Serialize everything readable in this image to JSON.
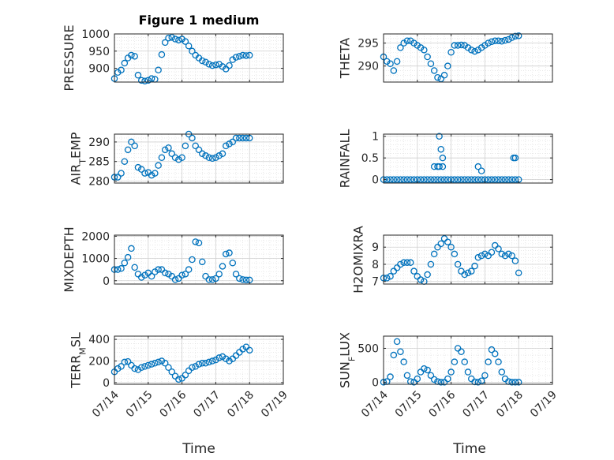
{
  "figure": {
    "title": "Figure 1 medium",
    "x_axis_label": "Time",
    "x_tick_labels": [
      "07/14",
      "07/15",
      "07/16",
      "07/17",
      "07/18",
      "07/19"
    ],
    "marker_color": "#0072bd"
  },
  "chart_data": [
    {
      "type": "scatter",
      "title": "Figure 1 medium",
      "ylabel_parts": [
        {
          "t": "PRESSURE"
        }
      ],
      "ylim": [
        860,
        1000
      ],
      "yticks": [
        900,
        950,
        1000
      ],
      "xlim": [
        0,
        5
      ],
      "series": [
        {
          "x": [
            0,
            0.1,
            0.2,
            0.3,
            0.4,
            0.5,
            0.6,
            0.7,
            0.8,
            0.9,
            1.0,
            1.1,
            1.2,
            1.3,
            1.4,
            1.5,
            1.6,
            1.7,
            1.8,
            1.9,
            2.0,
            2.1,
            2.2,
            2.3,
            2.4,
            2.5,
            2.6,
            2.7,
            2.8,
            2.9,
            3.0,
            3.1,
            3.2,
            3.3,
            3.4,
            3.5,
            3.6,
            3.7,
            3.8,
            3.9,
            4.0
          ],
          "y": [
            870,
            888,
            895,
            915,
            930,
            938,
            935,
            880,
            865,
            863,
            865,
            870,
            868,
            895,
            940,
            975,
            988,
            990,
            985,
            982,
            985,
            978,
            965,
            950,
            938,
            930,
            922,
            918,
            912,
            908,
            910,
            912,
            905,
            898,
            908,
            925,
            932,
            935,
            938,
            937,
            938
          ]
        }
      ]
    },
    {
      "type": "scatter",
      "ylabel_parts": [
        {
          "t": "THETA"
        }
      ],
      "ylim": [
        286.5,
        297
      ],
      "yticks": [
        290,
        295
      ],
      "xlim": [
        0,
        5
      ],
      "series": [
        {
          "x": [
            0,
            0.1,
            0.2,
            0.3,
            0.4,
            0.5,
            0.6,
            0.7,
            0.8,
            0.9,
            1.0,
            1.1,
            1.2,
            1.3,
            1.4,
            1.5,
            1.6,
            1.7,
            1.8,
            1.9,
            2.0,
            2.1,
            2.2,
            2.3,
            2.4,
            2.5,
            2.6,
            2.7,
            2.8,
            2.9,
            3.0,
            3.1,
            3.2,
            3.3,
            3.4,
            3.5,
            3.6,
            3.7,
            3.8,
            3.9,
            4.0
          ],
          "y": [
            292,
            291,
            290.5,
            289,
            291,
            294,
            295,
            295.5,
            295.5,
            295,
            294.5,
            294,
            293.5,
            292,
            290.5,
            289,
            287.5,
            287.2,
            288,
            290,
            293,
            294.5,
            294.5,
            294.6,
            294.5,
            294,
            293.5,
            293.2,
            293.5,
            294,
            294.5,
            295,
            295.3,
            295.5,
            295.5,
            295.4,
            295.6,
            295.8,
            296.2,
            296.5,
            296.6
          ]
        }
      ]
    },
    {
      "type": "scatter",
      "ylabel_parts": [
        {
          "t": "AIR"
        },
        {
          "t": "T",
          "sub": true
        },
        {
          "t": "EMP"
        }
      ],
      "ylim": [
        279.5,
        292
      ],
      "yticks": [
        280,
        285,
        290
      ],
      "xlim": [
        0,
        5
      ],
      "series": [
        {
          "x": [
            0,
            0.1,
            0.2,
            0.3,
            0.4,
            0.5,
            0.6,
            0.7,
            0.8,
            0.9,
            1.0,
            1.1,
            1.2,
            1.3,
            1.4,
            1.5,
            1.6,
            1.7,
            1.8,
            1.9,
            2.0,
            2.1,
            2.2,
            2.3,
            2.4,
            2.5,
            2.6,
            2.7,
            2.8,
            2.9,
            3.0,
            3.1,
            3.2,
            3.3,
            3.4,
            3.5,
            3.6,
            3.7,
            3.8,
            3.9,
            4.0
          ],
          "y": [
            281,
            281,
            282,
            285,
            288,
            290,
            289,
            283.5,
            283,
            282,
            282.2,
            281.5,
            282,
            284,
            286,
            288,
            288.5,
            287,
            286,
            285.5,
            286,
            289,
            292,
            291,
            289,
            288,
            287,
            286.5,
            286,
            285.8,
            286,
            286.5,
            287,
            289,
            289.5,
            290,
            291,
            291,
            291,
            291,
            291
          ]
        }
      ]
    },
    {
      "type": "scatter",
      "ylabel_parts": [
        {
          "t": "RAINFALL"
        }
      ],
      "ylim": [
        -0.08,
        1.05
      ],
      "yticks": [
        0,
        0.5,
        1
      ],
      "xlim": [
        0,
        5
      ],
      "series": [
        {
          "x": [
            0,
            0.1,
            0.2,
            0.3,
            0.4,
            0.5,
            0.6,
            0.7,
            0.8,
            0.9,
            1.0,
            1.1,
            1.2,
            1.3,
            1.4,
            1.5,
            1.6,
            1.7,
            1.8,
            1.9,
            2.0,
            2.1,
            2.2,
            2.3,
            2.4,
            2.5,
            2.6,
            2.7,
            2.8,
            2.9,
            3.0,
            3.1,
            3.2,
            3.3,
            3.4,
            3.5,
            3.6,
            3.7,
            3.8,
            3.9,
            4.0,
            1.5,
            1.65,
            1.7,
            1.65,
            1.75,
            1.75,
            1.6,
            2.8,
            2.9,
            3.85,
            3.9
          ],
          "y": [
            0,
            0,
            0,
            0,
            0,
            0,
            0,
            0,
            0,
            0,
            0,
            0,
            0,
            0,
            0,
            0,
            0,
            0,
            0,
            0,
            0,
            0,
            0,
            0,
            0,
            0,
            0,
            0,
            0,
            0,
            0,
            0,
            0,
            0,
            0,
            0,
            0,
            0,
            0,
            0,
            0,
            0.3,
            1.0,
            0.7,
            0.3,
            0.3,
            0.5,
            0.3,
            0.3,
            0.2,
            0.5,
            0.5
          ]
        }
      ]
    },
    {
      "type": "scatter",
      "ylabel_parts": [
        {
          "t": "MIXDEPTH"
        }
      ],
      "ylim": [
        -150,
        2050
      ],
      "yticks": [
        0,
        1000,
        2000
      ],
      "xlim": [
        0,
        5
      ],
      "series": [
        {
          "x": [
            0,
            0.1,
            0.2,
            0.3,
            0.4,
            0.5,
            0.6,
            0.7,
            0.8,
            0.9,
            1.0,
            1.1,
            1.2,
            1.3,
            1.4,
            1.5,
            1.6,
            1.7,
            1.8,
            1.9,
            2.0,
            2.1,
            2.2,
            2.3,
            2.4,
            2.5,
            2.6,
            2.7,
            2.8,
            2.9,
            3.0,
            3.1,
            3.2,
            3.3,
            3.4,
            3.5,
            3.6,
            3.7,
            3.8,
            3.9,
            4.0
          ],
          "y": [
            500,
            500,
            550,
            800,
            1050,
            1450,
            600,
            300,
            150,
            250,
            350,
            200,
            400,
            500,
            500,
            350,
            300,
            200,
            50,
            100,
            250,
            300,
            500,
            950,
            1750,
            1700,
            850,
            200,
            50,
            50,
            100,
            300,
            650,
            1200,
            1250,
            800,
            300,
            100,
            50,
            30,
            30
          ]
        }
      ]
    },
    {
      "type": "scatter",
      "ylabel_parts": [
        {
          "t": "H2OMIXRA"
        }
      ],
      "ylim": [
        6.85,
        9.7
      ],
      "yticks": [
        7,
        8,
        9
      ],
      "xlim": [
        0,
        5
      ],
      "series": [
        {
          "x": [
            0,
            0.1,
            0.2,
            0.3,
            0.4,
            0.5,
            0.6,
            0.7,
            0.8,
            0.9,
            1.0,
            1.1,
            1.2,
            1.3,
            1.4,
            1.5,
            1.6,
            1.7,
            1.8,
            1.9,
            2.0,
            2.1,
            2.2,
            2.3,
            2.4,
            2.5,
            2.6,
            2.7,
            2.8,
            2.9,
            3.0,
            3.1,
            3.2,
            3.3,
            3.4,
            3.5,
            3.6,
            3.7,
            3.8,
            3.9,
            4.0
          ],
          "y": [
            7.2,
            7.2,
            7.3,
            7.6,
            7.8,
            8.0,
            8.1,
            8.1,
            8.1,
            7.6,
            7.3,
            7.1,
            7.0,
            7.4,
            8.0,
            8.6,
            9.0,
            9.2,
            9.5,
            9.3,
            9.0,
            8.6,
            8.0,
            7.6,
            7.4,
            7.5,
            7.6,
            7.9,
            8.4,
            8.5,
            8.6,
            8.5,
            8.7,
            9.1,
            8.9,
            8.6,
            8.5,
            8.6,
            8.5,
            8.2,
            7.5
          ]
        }
      ]
    },
    {
      "type": "scatter",
      "ylabel_parts": [
        {
          "t": "TERR"
        },
        {
          "t": "M",
          "sub": true
        },
        {
          "t": "SL"
        }
      ],
      "ylim": [
        -15,
        430
      ],
      "yticks": [
        0,
        200,
        400
      ],
      "xlim": [
        0,
        5
      ],
      "series": [
        {
          "x": [
            0,
            0.1,
            0.2,
            0.3,
            0.4,
            0.5,
            0.6,
            0.7,
            0.8,
            0.9,
            1.0,
            1.1,
            1.2,
            1.3,
            1.4,
            1.5,
            1.6,
            1.7,
            1.8,
            1.9,
            2.0,
            2.1,
            2.2,
            2.3,
            2.4,
            2.5,
            2.6,
            2.7,
            2.8,
            2.9,
            3.0,
            3.1,
            3.2,
            3.3,
            3.4,
            3.5,
            3.6,
            3.7,
            3.8,
            3.9,
            4.0
          ],
          "y": [
            100,
            130,
            150,
            190,
            195,
            160,
            130,
            120,
            140,
            150,
            160,
            170,
            180,
            190,
            200,
            180,
            140,
            100,
            60,
            30,
            40,
            70,
            110,
            140,
            150,
            170,
            180,
            180,
            190,
            200,
            210,
            230,
            240,
            220,
            200,
            220,
            250,
            280,
            310,
            330,
            300
          ]
        }
      ]
    },
    {
      "type": "scatter",
      "ylabel_parts": [
        {
          "t": "SUN"
        },
        {
          "t": "F",
          "sub": true
        },
        {
          "t": "LUX"
        }
      ],
      "ylim": [
        -30,
        680
      ],
      "yticks": [
        0,
        500
      ],
      "xlim": [
        0,
        5
      ],
      "series": [
        {
          "x": [
            0,
            0.1,
            0.2,
            0.3,
            0.4,
            0.5,
            0.6,
            0.7,
            0.8,
            0.9,
            1.0,
            1.1,
            1.2,
            1.3,
            1.4,
            1.5,
            1.6,
            1.7,
            1.8,
            1.9,
            2.0,
            2.1,
            2.2,
            2.3,
            2.4,
            2.5,
            2.6,
            2.7,
            2.8,
            2.9,
            3.0,
            3.1,
            3.2,
            3.3,
            3.4,
            3.5,
            3.6,
            3.7,
            3.8,
            3.9,
            4.0
          ],
          "y": [
            0,
            10,
            80,
            400,
            600,
            450,
            300,
            100,
            10,
            0,
            50,
            150,
            200,
            180,
            100,
            40,
            10,
            0,
            0,
            50,
            150,
            300,
            500,
            450,
            300,
            150,
            50,
            5,
            0,
            20,
            100,
            300,
            480,
            420,
            300,
            150,
            50,
            10,
            0,
            0,
            0
          ]
        }
      ]
    }
  ]
}
